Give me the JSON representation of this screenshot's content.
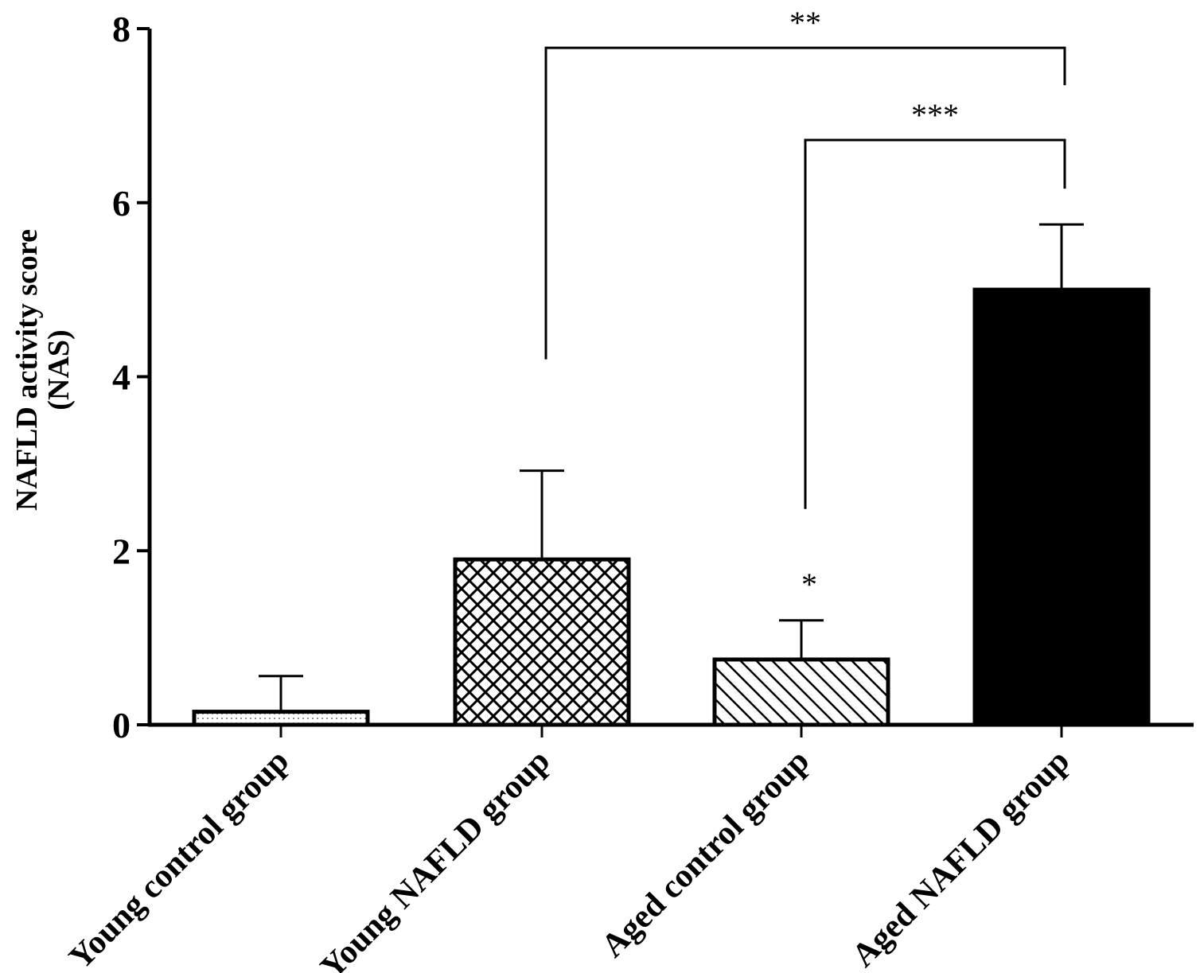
{
  "chart_data": {
    "type": "bar",
    "categories": [
      "Young control group",
      "Young NAFLD group",
      "Aged control group",
      "Aged NAFLD group"
    ],
    "values": [
      0.15,
      1.9,
      0.75,
      5.0
    ],
    "errors": [
      0.41,
      1.02,
      0.45,
      0.75
    ],
    "fills": [
      "dots",
      "crosshatch",
      "diagonal",
      "solid"
    ],
    "ylabel_lines": [
      "NAFLD activity score",
      "(NAS)"
    ],
    "ylim": [
      0,
      8
    ],
    "yticks": [
      "0",
      "2",
      "4",
      "6",
      "8"
    ],
    "grid": false,
    "point_marker": "*",
    "significance": [
      {
        "from": 1,
        "to": 3,
        "label": "**",
        "y": 7.78
      },
      {
        "from": 2,
        "to": 3,
        "label": "***",
        "y": 6.72
      }
    ],
    "colors": {
      "bar_fill": "#ffffff",
      "stroke": "#000000",
      "solid": "#000000"
    }
  }
}
